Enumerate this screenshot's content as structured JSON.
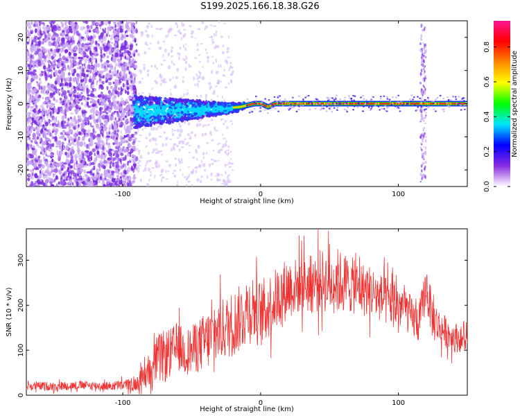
{
  "title": "S199.2025.166.18.38.G26",
  "colors": {
    "snr_line": "#ee3333",
    "spectrogram_scatter": "#8a2be2",
    "spectrogram_peak": "#ff2222"
  },
  "chart_data": [
    {
      "type": "heatmap",
      "xlabel": "Height of straight line (km)",
      "ylabel": "Frequency (Hz)",
      "xlim": [
        -170,
        150
      ],
      "ylim": [
        -25,
        25
      ],
      "x_ticks": [
        "-100",
        "0",
        "100"
      ],
      "y_ticks": [
        "-20",
        "-10",
        "0",
        "10",
        "20"
      ],
      "colorbar": {
        "label": "Normalized spectral amplitude",
        "range": [
          0,
          0.95
        ],
        "ticks": [
          "0.0",
          "0.2",
          "0.4",
          "0.6",
          "0.8"
        ],
        "stops": [
          "#ffffff",
          "#8a2be2",
          "#0000ff",
          "#00e5ff",
          "#00ff00",
          "#ffff00",
          "#ff8800",
          "#ff0000",
          "#ff1493"
        ]
      },
      "peak_frequency_track": {
        "x": [
          -90,
          -60,
          -30,
          -15,
          -5,
          0,
          5,
          10,
          20,
          50,
          80,
          100,
          120,
          150
        ],
        "y": [
          -2.5,
          -2,
          -1.5,
          -1,
          0,
          0,
          -1,
          0,
          0,
          0,
          0,
          0,
          0,
          0
        ]
      }
    },
    {
      "type": "line",
      "xlabel": "Height of straight line (km)",
      "ylabel": "SNR (10 * v/v)",
      "xlim": [
        -170,
        150
      ],
      "ylim": [
        0,
        370
      ],
      "x_ticks": [
        "-100",
        "0",
        "100"
      ],
      "y_ticks": [
        "0",
        "100",
        "200",
        "300"
      ],
      "series": [
        {
          "x": [
            -170,
            -150,
            -130,
            -110,
            -90,
            -85,
            -80,
            -75,
            -70,
            -65,
            -60,
            -55,
            -50,
            -45,
            -40,
            -35,
            -30,
            -25,
            -20,
            -15,
            -10,
            -5,
            0,
            5,
            10,
            15,
            20,
            25,
            30,
            35,
            40,
            45,
            50,
            55,
            60,
            65,
            70,
            75,
            80,
            85,
            90,
            95,
            100,
            105,
            110,
            115,
            120,
            125,
            130,
            135,
            140,
            145,
            150
          ],
          "y": [
            20,
            20,
            22,
            20,
            25,
            40,
            60,
            80,
            85,
            95,
            110,
            95,
            100,
            110,
            120,
            130,
            145,
            150,
            160,
            170,
            190,
            195,
            180,
            195,
            210,
            225,
            240,
            240,
            250,
            245,
            250,
            255,
            250,
            255,
            250,
            245,
            240,
            235,
            230,
            220,
            210,
            205,
            200,
            195,
            170,
            160,
            240,
            170,
            150,
            140,
            130,
            125,
            120
          ],
          "noise_amplitude": [
            10,
            10,
            10,
            10,
            15,
            30,
            45,
            55,
            60,
            55,
            55,
            50,
            55,
            60,
            65,
            70,
            70,
            70,
            75,
            75,
            80,
            80,
            75,
            75,
            70,
            70,
            70,
            65,
            65,
            65,
            70,
            70,
            70,
            75,
            70,
            65,
            60,
            60,
            60,
            55,
            55,
            55,
            55,
            50,
            45,
            45,
            50,
            50,
            40,
            35,
            35,
            30,
            30
          ]
        }
      ]
    }
  ]
}
